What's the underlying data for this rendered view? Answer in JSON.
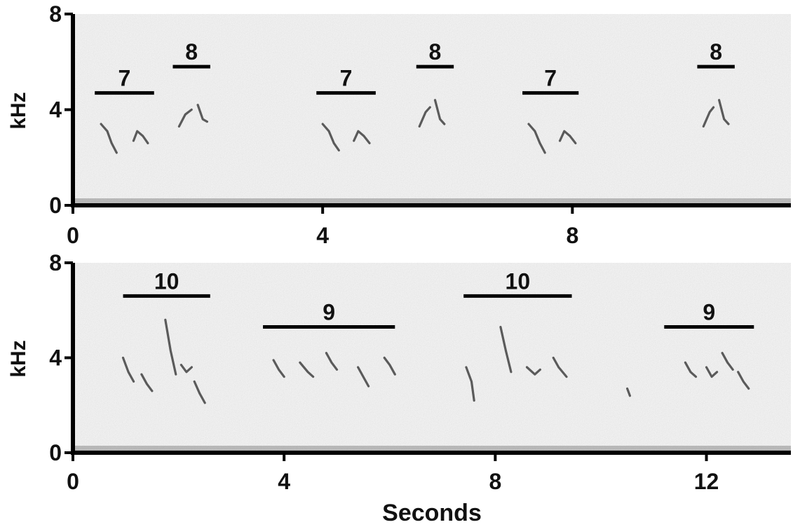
{
  "chart_data": [
    {
      "type": "spectrogram",
      "ylabel": "kHz",
      "xlabel": "",
      "xlim": [
        0,
        11.5
      ],
      "ylim": [
        0,
        8
      ],
      "x_ticks": [
        "0",
        "4",
        "8"
      ],
      "y_ticks": [
        "0",
        "4",
        "8"
      ],
      "background": "#dcdcdc",
      "ink": "#2a2a2a",
      "annotations": [
        {
          "label": "7",
          "x_start": 0.35,
          "x_end": 1.3,
          "y": 4.7
        },
        {
          "label": "8",
          "x_start": 1.6,
          "x_end": 2.2,
          "y": 5.8
        },
        {
          "label": "7",
          "x_start": 3.9,
          "x_end": 4.85,
          "y": 4.7
        },
        {
          "label": "8",
          "x_start": 5.5,
          "x_end": 6.1,
          "y": 5.8
        },
        {
          "label": "7",
          "x_start": 7.2,
          "x_end": 8.1,
          "y": 4.7
        },
        {
          "label": "8",
          "x_start": 10.0,
          "x_end": 10.6,
          "y": 5.8
        }
      ],
      "traces": [
        [
          [
            0.45,
            3.4
          ],
          [
            0.55,
            3.1
          ],
          [
            0.62,
            2.6
          ],
          [
            0.7,
            2.2
          ]
        ],
        [
          [
            0.97,
            2.7
          ],
          [
            1.03,
            3.1
          ],
          [
            1.12,
            2.9
          ],
          [
            1.2,
            2.6
          ]
        ],
        [
          [
            1.7,
            3.3
          ],
          [
            1.8,
            3.8
          ],
          [
            1.9,
            4.0
          ]
        ],
        [
          [
            2.0,
            4.2
          ],
          [
            2.08,
            3.6
          ],
          [
            2.15,
            3.5
          ]
        ],
        [
          [
            4.0,
            3.4
          ],
          [
            4.1,
            3.1
          ],
          [
            4.18,
            2.6
          ],
          [
            4.26,
            2.3
          ]
        ],
        [
          [
            4.5,
            2.7
          ],
          [
            4.57,
            3.1
          ],
          [
            4.66,
            2.9
          ],
          [
            4.75,
            2.6
          ]
        ],
        [
          [
            5.55,
            3.3
          ],
          [
            5.65,
            3.9
          ],
          [
            5.72,
            4.1
          ]
        ],
        [
          [
            5.8,
            4.4
          ],
          [
            5.88,
            3.6
          ],
          [
            5.95,
            3.4
          ]
        ],
        [
          [
            7.3,
            3.4
          ],
          [
            7.4,
            3.1
          ],
          [
            7.48,
            2.6
          ],
          [
            7.56,
            2.2
          ]
        ],
        [
          [
            7.8,
            2.7
          ],
          [
            7.87,
            3.1
          ],
          [
            7.96,
            2.9
          ],
          [
            8.05,
            2.6
          ]
        ],
        [
          [
            10.1,
            3.3
          ],
          [
            10.2,
            3.9
          ],
          [
            10.26,
            4.1
          ]
        ],
        [
          [
            10.35,
            4.4
          ],
          [
            10.43,
            3.6
          ],
          [
            10.5,
            3.4
          ]
        ]
      ]
    },
    {
      "type": "spectrogram",
      "ylabel": "kHz",
      "xlabel": "Seconds",
      "xlim": [
        0,
        13.6
      ],
      "ylim": [
        0,
        8
      ],
      "x_ticks": [
        "0",
        "4",
        "8",
        "12"
      ],
      "y_ticks": [
        "0",
        "4",
        "8"
      ],
      "background": "#dcdcdc",
      "ink": "#2a2a2a",
      "annotations": [
        {
          "label": "10",
          "x_start": 0.95,
          "x_end": 2.6,
          "y": 6.6
        },
        {
          "label": "9",
          "x_start": 3.6,
          "x_end": 6.1,
          "y": 5.3
        },
        {
          "label": "10",
          "x_start": 7.4,
          "x_end": 9.45,
          "y": 6.6
        },
        {
          "label": "9",
          "x_start": 11.2,
          "x_end": 12.9,
          "y": 5.3
        }
      ],
      "traces": [
        [
          [
            0.95,
            4.0
          ],
          [
            1.05,
            3.4
          ],
          [
            1.15,
            3.0
          ]
        ],
        [
          [
            1.3,
            3.3
          ],
          [
            1.4,
            2.9
          ],
          [
            1.5,
            2.6
          ]
        ],
        [
          [
            1.75,
            5.6
          ],
          [
            1.85,
            4.3
          ],
          [
            1.95,
            3.3
          ]
        ],
        [
          [
            2.05,
            3.7
          ],
          [
            2.15,
            3.4
          ],
          [
            2.25,
            3.6
          ]
        ],
        [
          [
            2.3,
            3.0
          ],
          [
            2.4,
            2.5
          ],
          [
            2.5,
            2.1
          ]
        ],
        [
          [
            3.8,
            3.9
          ],
          [
            3.9,
            3.5
          ],
          [
            4.0,
            3.2
          ]
        ],
        [
          [
            4.3,
            3.8
          ],
          [
            4.45,
            3.4
          ],
          [
            4.55,
            3.2
          ]
        ],
        [
          [
            4.8,
            4.2
          ],
          [
            4.9,
            3.8
          ],
          [
            5.0,
            3.5
          ]
        ],
        [
          [
            5.4,
            3.6
          ],
          [
            5.5,
            3.2
          ],
          [
            5.6,
            2.8
          ]
        ],
        [
          [
            5.9,
            4.0
          ],
          [
            6.0,
            3.7
          ],
          [
            6.1,
            3.3
          ]
        ],
        [
          [
            7.45,
            3.6
          ],
          [
            7.55,
            3.0
          ],
          [
            7.6,
            2.2
          ]
        ],
        [
          [
            8.1,
            5.3
          ],
          [
            8.2,
            4.3
          ],
          [
            8.3,
            3.4
          ]
        ],
        [
          [
            8.6,
            3.6
          ],
          [
            8.75,
            3.3
          ],
          [
            8.85,
            3.5
          ]
        ],
        [
          [
            9.1,
            4.0
          ],
          [
            9.2,
            3.6
          ],
          [
            9.35,
            3.2
          ]
        ],
        [
          [
            10.5,
            2.7
          ],
          [
            10.55,
            2.4
          ]
        ],
        [
          [
            11.6,
            3.8
          ],
          [
            11.7,
            3.4
          ],
          [
            11.8,
            3.2
          ]
        ],
        [
          [
            12.0,
            3.6
          ],
          [
            12.1,
            3.2
          ],
          [
            12.2,
            3.4
          ]
        ],
        [
          [
            12.3,
            4.2
          ],
          [
            12.4,
            3.8
          ],
          [
            12.5,
            3.5
          ]
        ],
        [
          [
            12.6,
            3.4
          ],
          [
            12.7,
            3.0
          ],
          [
            12.8,
            2.7
          ]
        ]
      ]
    }
  ]
}
